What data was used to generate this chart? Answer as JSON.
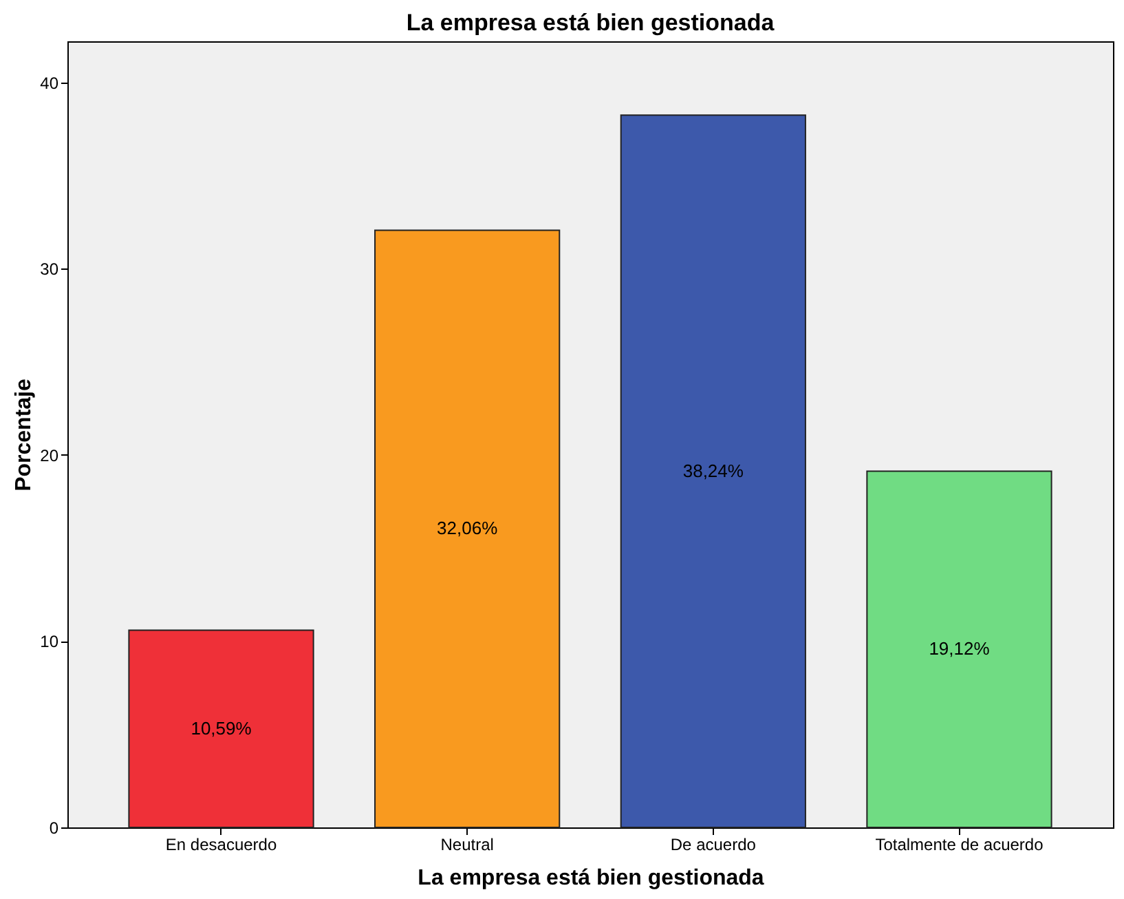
{
  "chart_data": {
    "type": "bar",
    "title": "La empresa está bien gestionada",
    "xlabel": "La empresa está bien gestionada",
    "ylabel": "Porcentaje",
    "categories": [
      "En desacuerdo",
      "Neutral",
      "De acuerdo",
      "Totalmente de acuerdo"
    ],
    "values": [
      10.59,
      32.06,
      38.24,
      19.12
    ],
    "colors": [
      "#ef3038",
      "#f99a1f",
      "#3d59ab",
      "#70dc83"
    ],
    "value_labels": [
      "10,59%",
      "32,06%",
      "38,24%",
      "19,12%"
    ],
    "ylim": [
      0,
      42.2
    ],
    "yticks": [
      0,
      10,
      20,
      30,
      40
    ],
    "grid": false
  }
}
